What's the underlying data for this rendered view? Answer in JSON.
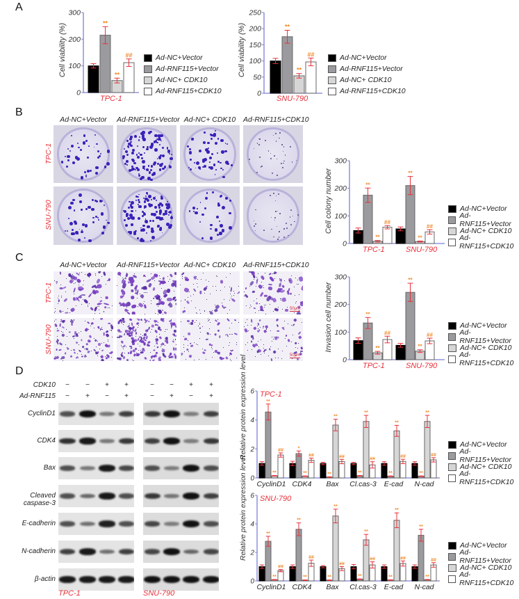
{
  "figure": {
    "panels": [
      "A",
      "B",
      "C",
      "D"
    ],
    "groups": [
      "Ad-NC+Vector",
      "Ad-RNF115+Vector",
      "Ad-NC+ CDK10",
      "Ad-RNF115+CDK10"
    ],
    "group_colors": [
      "#000000",
      "#9b9b9f",
      "#d6d6d6",
      "#ffffff"
    ],
    "axis_color": "#7b7fd6",
    "sig_color": "#f08a2a",
    "errbar_color": "#e8303a",
    "cell_lines": [
      "TPC-1",
      "SNU-790"
    ]
  },
  "panelA": {
    "letter": "A",
    "legend": [
      "Ad-NC+Vector",
      "Ad-RNF115+Vector",
      "Ad-NC+ CDK10",
      "Ad-RNF115+CDK10"
    ]
  },
  "panelB": {
    "letter": "B",
    "col_heads": [
      "Ad-NC+Vector",
      "Ad-RNF115+Vector",
      "Ad-NC+ CDK10",
      "Ad-RNF115+CDK10"
    ],
    "row_labels": [
      "TPC-1",
      "SNU-790"
    ],
    "legend": [
      "Ad-NC+Vector",
      "Ad-RNF115+Vector",
      "Ad-NC+ CDK10",
      "Ad-RNF115+CDK10"
    ]
  },
  "panelC": {
    "letter": "C",
    "col_heads": [
      "Ad-NC+Vector",
      "Ad-RNF115+Vector",
      "Ad-NC+ CDK10",
      "Ad-RNF115+CDK10"
    ],
    "row_labels": [
      "TPC-1",
      "SNU-790"
    ],
    "scale_bar": "50μm",
    "legend": [
      "Ad-NC+Vector",
      "Ad-RNF115+Vector",
      "Ad-NC+ CDK10",
      "Ad-RNF115+CDK10"
    ]
  },
  "panelD": {
    "letter": "D",
    "treatment_rows": [
      {
        "label": "CDK10",
        "signs": [
          "−",
          "−",
          "+",
          "+",
          "−",
          "−",
          "+",
          "+"
        ]
      },
      {
        "label": "Ad-RNF115",
        "signs": [
          "−",
          "+",
          "−",
          "+",
          "−",
          "+",
          "−",
          "+"
        ]
      }
    ],
    "blot_labels": [
      "CyclinD1",
      "CDK4",
      "Bax",
      "Cleaved caspase-3",
      "E-cadherin",
      "N-cadherin",
      "β-actin"
    ],
    "blot_cell_lines": [
      "TPC-1",
      "SNU-790"
    ],
    "legend": [
      "Ad-NC+Vector",
      "Ad-RNF115+Vector",
      "Ad-NC+ CDK10",
      "Ad-RNF115+CDK10"
    ]
  },
  "chart_data": [
    {
      "id": "A-TPC-1",
      "type": "bar",
      "title": "",
      "xlabel": "TPC-1",
      "ylabel": "Cell viability (%)",
      "ylim": [
        0,
        300
      ],
      "yticks": [
        0,
        100,
        200,
        300
      ],
      "grid": false,
      "legend_position": "right",
      "categories": [
        "TPC-1"
      ],
      "series": [
        {
          "name": "Ad-NC+Vector",
          "values": [
            100
          ],
          "err": [
            8
          ],
          "sig": ""
        },
        {
          "name": "Ad-RNF115+Vector",
          "values": [
            215
          ],
          "err": [
            32
          ],
          "sig": "**"
        },
        {
          "name": "Ad-NC+ CDK10",
          "values": [
            45
          ],
          "err": [
            9
          ],
          "sig": "**"
        },
        {
          "name": "Ad-RNF115+CDK10",
          "values": [
            112
          ],
          "err": [
            14
          ],
          "sig": "##"
        }
      ]
    },
    {
      "id": "A-SNU-790",
      "type": "bar",
      "title": "",
      "xlabel": "SNU-790",
      "ylabel": "Cell viability (%)",
      "ylim": [
        0,
        250
      ],
      "yticks": [
        0,
        50,
        100,
        150,
        200,
        250
      ],
      "grid": false,
      "legend_position": "right",
      "categories": [
        "SNU-790"
      ],
      "series": [
        {
          "name": "Ad-NC+Vector",
          "values": [
            100
          ],
          "err": [
            8
          ],
          "sig": ""
        },
        {
          "name": "Ad-RNF115+Vector",
          "values": [
            175
          ],
          "err": [
            20
          ],
          "sig": "**"
        },
        {
          "name": "Ad-NC+ CDK10",
          "values": [
            54
          ],
          "err": [
            7
          ],
          "sig": "**"
        },
        {
          "name": "Ad-RNF115+CDK10",
          "values": [
            97
          ],
          "err": [
            12
          ],
          "sig": "##"
        }
      ]
    },
    {
      "id": "B",
      "type": "bar",
      "title": "",
      "xlabel": "",
      "ylabel": "Cell colony number",
      "ylim": [
        0,
        300
      ],
      "yticks": [
        0,
        100,
        200,
        300
      ],
      "grid": false,
      "legend_position": "right",
      "categories": [
        "TPC-1",
        "SNU-790"
      ],
      "series": [
        {
          "name": "Ad-NC+Vector",
          "values": [
            47,
            53
          ],
          "err": [
            9,
            7
          ],
          "sig": [
            "",
            ""
          ]
        },
        {
          "name": "Ad-RNF115+Vector",
          "values": [
            175,
            210
          ],
          "err": [
            26,
            33
          ],
          "sig": [
            "**",
            "**"
          ]
        },
        {
          "name": "Ad-NC+ CDK10",
          "values": [
            8,
            7
          ],
          "err": [
            3,
            2
          ],
          "sig": [
            "**",
            "**"
          ]
        },
        {
          "name": "Ad-RNF115+CDK10",
          "values": [
            59,
            42
          ],
          "err": [
            6,
            8
          ],
          "sig": [
            "##",
            "##"
          ]
        }
      ]
    },
    {
      "id": "C",
      "type": "bar",
      "title": "",
      "xlabel": "",
      "ylabel": "Invasion cell number",
      "ylim": [
        0,
        300
      ],
      "yticks": [
        0,
        100,
        200,
        300
      ],
      "grid": false,
      "legend_position": "right",
      "categories": [
        "TPC-1",
        "SNU-790"
      ],
      "series": [
        {
          "name": "Ad-NC+Vector",
          "values": [
            69,
            52
          ],
          "err": [
            10,
            7
          ],
          "sig": [
            "",
            ""
          ]
        },
        {
          "name": "Ad-RNF115+Vector",
          "values": [
            133,
            244
          ],
          "err": [
            20,
            33
          ],
          "sig": [
            "**",
            "**"
          ]
        },
        {
          "name": "Ad-NC+ CDK10",
          "values": [
            25,
            31
          ],
          "err": [
            5,
            5
          ],
          "sig": [
            "**",
            "**"
          ]
        },
        {
          "name": "Ad-RNF115+CDK10",
          "values": [
            73,
            68
          ],
          "err": [
            12,
            10
          ],
          "sig": [
            "##",
            "##"
          ]
        }
      ]
    },
    {
      "id": "D-TPC-1",
      "type": "bar",
      "title": "TPC-1",
      "xlabel": "",
      "ylabel": "Relative protein expression level",
      "ylim": [
        0,
        6
      ],
      "yticks": [
        0,
        2,
        4,
        6
      ],
      "grid": false,
      "legend_position": "right",
      "categories": [
        "CyclinD1",
        "CDK4",
        "Bax",
        "Cl.cas-3",
        "E-cad",
        "N-cad"
      ],
      "series": [
        {
          "name": "Ad-NC+Vector",
          "values": [
            1.0,
            1.0,
            1.0,
            1.0,
            1.0,
            1.0
          ],
          "err": [
            0.12,
            0.15,
            0.08,
            0.08,
            0.12,
            0.12
          ],
          "sig": [
            "",
            "",
            "",
            "",
            "",
            ""
          ]
        },
        {
          "name": "Ad-RNF115+Vector",
          "values": [
            4.55,
            1.68,
            0.06,
            0.15,
            0.12,
            0.12
          ],
          "err": [
            0.55,
            0.18,
            0.02,
            0.02,
            0.02,
            0.02
          ],
          "sig": [
            "**",
            "*",
            "**",
            "**",
            "**",
            "**"
          ]
        },
        {
          "name": "Ad-NC+ CDK10",
          "values": [
            0.15,
            0.12,
            3.65,
            3.9,
            3.25,
            3.9
          ],
          "err": [
            0.02,
            0.02,
            0.4,
            0.42,
            0.38,
            0.42
          ],
          "sig": [
            "**",
            "**",
            "**",
            "**",
            "**",
            "**"
          ]
        },
        {
          "name": "Ad-RNF115+CDK10",
          "values": [
            1.58,
            1.22,
            1.13,
            0.9,
            1.14,
            1.25
          ],
          "err": [
            0.15,
            0.15,
            0.15,
            0.22,
            0.15,
            0.15
          ],
          "sig": [
            "##",
            "##",
            "##",
            "##",
            "##",
            "##"
          ]
        }
      ]
    },
    {
      "id": "D-SNU-790",
      "type": "bar",
      "title": "SNU-790",
      "xlabel": "",
      "ylabel": "Relative protein expression level",
      "ylim": [
        0,
        6
      ],
      "yticks": [
        0,
        2,
        4,
        6
      ],
      "grid": false,
      "legend_position": "right",
      "categories": [
        "CyclinD1",
        "CDK4",
        "Bax",
        "Cl.cas-3",
        "E-cad",
        "N-cad"
      ],
      "series": [
        {
          "name": "Ad-NC+Vector",
          "values": [
            1.0,
            1.0,
            1.0,
            1.0,
            1.0,
            1.0
          ],
          "err": [
            0.12,
            0.12,
            0.08,
            0.15,
            0.12,
            0.12
          ],
          "sig": [
            "",
            "",
            "",
            "",
            "",
            ""
          ]
        },
        {
          "name": "Ad-RNF115+Vector",
          "values": [
            2.78,
            3.62,
            0.05,
            0.12,
            0.06,
            3.2
          ],
          "err": [
            0.35,
            0.45,
            0.02,
            0.02,
            0.02,
            0.42
          ],
          "sig": [
            "**",
            "**",
            "**",
            "**",
            "**",
            "**"
          ]
        },
        {
          "name": "Ad-NC+ CDK10",
          "values": [
            0.08,
            0.05,
            4.55,
            2.88,
            4.25,
            0.08
          ],
          "err": [
            0.02,
            0.02,
            0.48,
            0.38,
            0.52,
            0.02
          ],
          "sig": [
            "**",
            "**",
            "**",
            "**",
            "**",
            "**"
          ]
        },
        {
          "name": "Ad-RNF115+CDK10",
          "values": [
            0.72,
            1.24,
            0.86,
            1.12,
            1.22,
            1.12
          ],
          "err": [
            0.08,
            0.22,
            0.14,
            0.22,
            0.18,
            0.16
          ],
          "sig": [
            "##",
            "##",
            "##",
            "##",
            "##",
            "##"
          ]
        }
      ]
    }
  ]
}
